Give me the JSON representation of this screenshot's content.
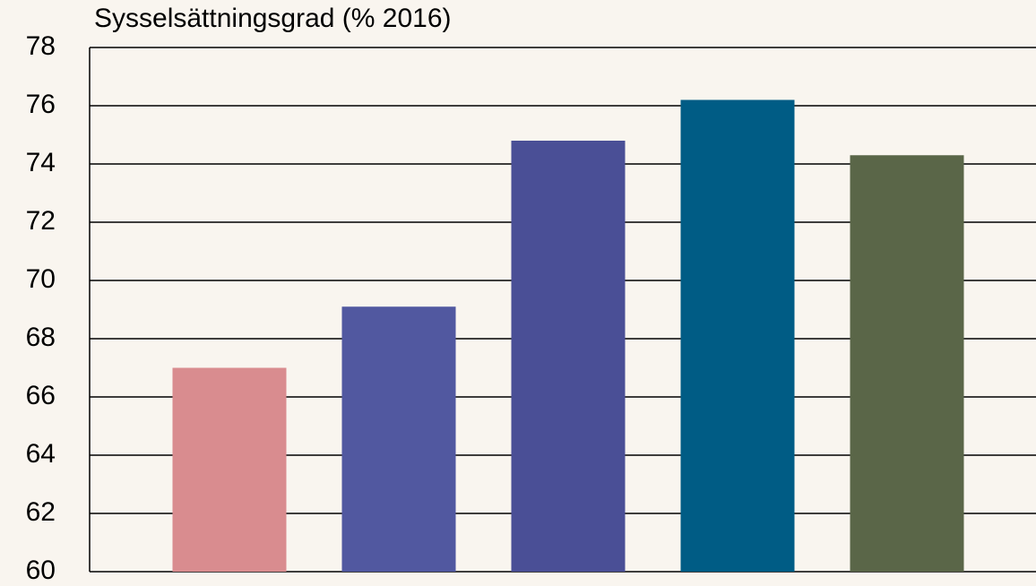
{
  "chart_data": {
    "type": "bar",
    "title": "Sysselsättningsgrad (% 2016)",
    "categories": [
      null,
      null,
      null,
      null,
      null
    ],
    "values": [
      67.0,
      69.1,
      74.8,
      76.2,
      74.3
    ],
    "colors": [
      "#d98c8f",
      "#5158a0",
      "#4a4f96",
      "#005c85",
      "#5a6648"
    ],
    "ylim": [
      60,
      78
    ],
    "yticks": [
      60,
      62,
      64,
      66,
      68,
      70,
      72,
      74,
      76,
      78
    ],
    "grid": true
  }
}
